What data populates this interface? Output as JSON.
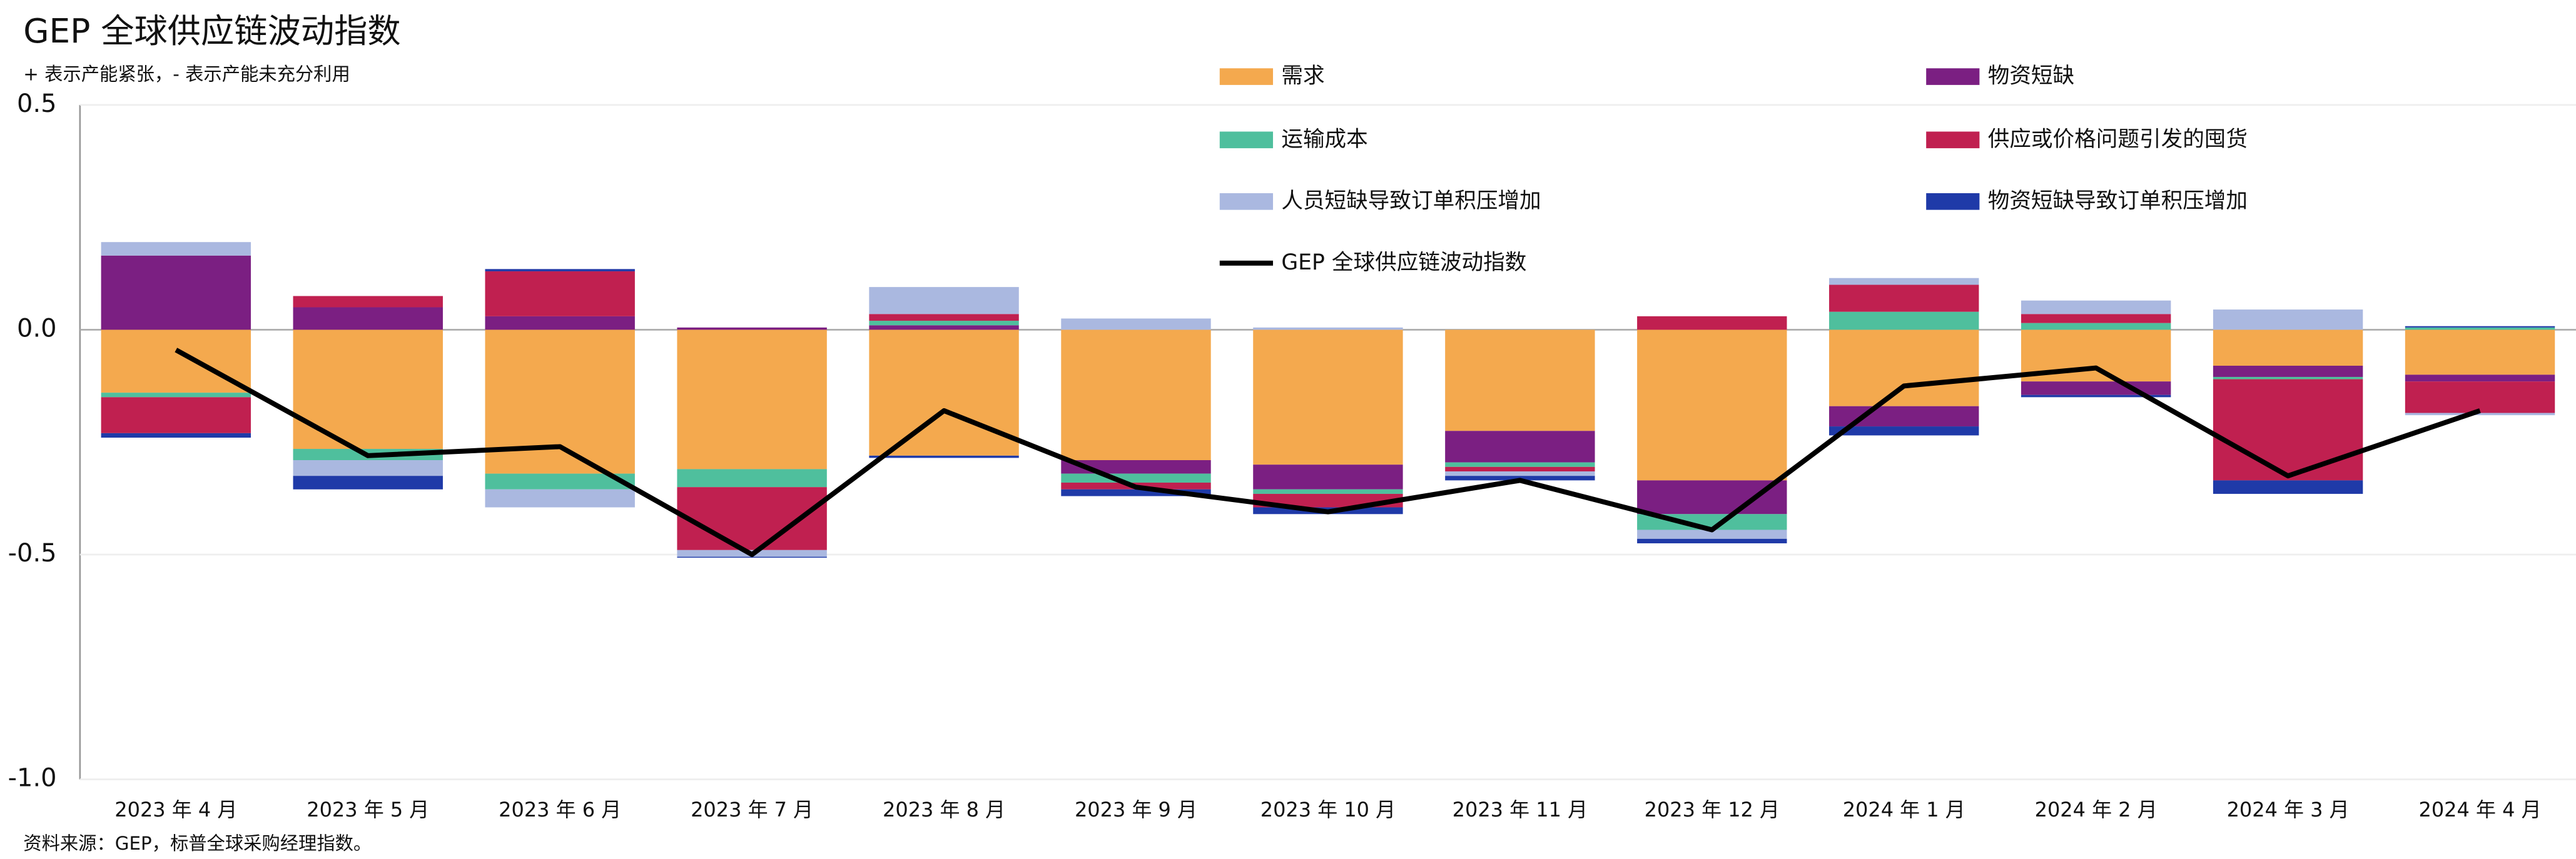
{
  "chart_data": {
    "type": "bar",
    "title": "GEP 全球供应链波动指数",
    "subtitle": "+ 表示产能紧张，- 表示产能未充分利用",
    "source": "资料来源：GEP，标普全球采购经理指数。",
    "categories": [
      "2023 年 4 月",
      "2023 年 5 月",
      "2023 年 6 月",
      "2023 年 7 月",
      "2023 年 8 月",
      "2023 年 9 月",
      "2023 年 10 月",
      "2023 年 11 月",
      "2023 年 12 月",
      "2024 年 1 月",
      "2024 年 2 月",
      "2024 年 3 月",
      "2024 年 4 月"
    ],
    "series": [
      {
        "name": "需求",
        "color": "#f4a94e",
        "values": [
          -0.14,
          -0.265,
          -0.32,
          -0.31,
          -0.28,
          -0.29,
          -0.3,
          -0.225,
          -0.335,
          -0.17,
          -0.115,
          -0.08,
          -0.1
        ]
      },
      {
        "name": "物资短缺",
        "color": "#7b1f82",
        "values": [
          0.165,
          0.05,
          0.03,
          0.005,
          0.01,
          -0.03,
          -0.055,
          -0.07,
          -0.075,
          -0.045,
          -0.03,
          -0.025,
          -0.015
        ]
      },
      {
        "name": "运输成本",
        "color": "#4fbf9d",
        "values": [
          -0.01,
          -0.025,
          -0.035,
          -0.04,
          0.01,
          -0.02,
          -0.01,
          -0.01,
          -0.035,
          0.04,
          0.015,
          -0.005,
          0.005
        ]
      },
      {
        "name": "供应或价格问题引发的囤货",
        "color": "#c02050",
        "values": [
          -0.08,
          0.025,
          0.1,
          -0.14,
          0.015,
          -0.015,
          -0.03,
          -0.01,
          0.03,
          0.06,
          0.02,
          -0.225,
          -0.07
        ]
      },
      {
        "name": "人员短缺导致订单积压增加",
        "color": "#aab8e0",
        "values": [
          0.03,
          -0.035,
          -0.04,
          -0.015,
          0.06,
          0.025,
          0.005,
          -0.01,
          -0.02,
          0.015,
          0.03,
          0.045,
          -0.005
        ]
      },
      {
        "name": "物资短缺导致订单积压增加",
        "color": "#1f3aa8",
        "values": [
          -0.01,
          -0.03,
          0.005,
          -0.002,
          -0.005,
          -0.015,
          -0.015,
          -0.01,
          -0.01,
          -0.02,
          -0.005,
          -0.03,
          0.003
        ]
      },
      {
        "name": "GEP 全球供应链波动指数",
        "color": "#000000",
        "type": "line",
        "values": [
          -0.045,
          -0.28,
          -0.26,
          -0.5,
          -0.18,
          -0.35,
          -0.405,
          -0.335,
          -0.445,
          -0.125,
          -0.085,
          -0.325,
          -0.18
        ]
      }
    ],
    "ylim": [
      -1,
      0.5
    ],
    "yticks": [
      {
        "value": -1,
        "label": "-1.0"
      },
      -0.5,
      {
        "value": 0,
        "label": "0.0"
      },
      0.5
    ],
    "grid": true
  }
}
